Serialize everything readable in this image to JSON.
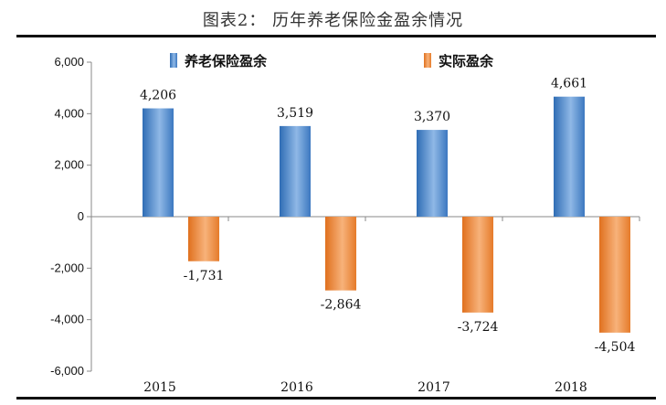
{
  "title": "图表2：   历年养老保险金盈余情况",
  "colors": {
    "series1": "#4a86c8",
    "series2": "#ee8a3a"
  },
  "chart_data": {
    "type": "bar",
    "categories": [
      "2015",
      "2016",
      "2017",
      "2018"
    ],
    "series": [
      {
        "name": "养老保险盈余",
        "values": [
          4206,
          3519,
          3370,
          4661
        ],
        "labels": [
          "4,206",
          "3,519",
          "3,370",
          "4,661"
        ]
      },
      {
        "name": "实际盈余",
        "values": [
          -1731,
          -2864,
          -3724,
          -4504
        ],
        "labels": [
          "-1,731",
          "-2,864",
          "-3,724",
          "-4,504"
        ]
      }
    ],
    "yticks": [
      "6,000",
      "4,000",
      "2,000",
      "0",
      "-2,000",
      "-4,000",
      "-6,000"
    ],
    "ytick_values": [
      6000,
      4000,
      2000,
      0,
      -2000,
      -4000,
      -6000
    ],
    "ylim": [
      -6000,
      6000
    ],
    "legend_position": "top",
    "grid": false
  }
}
